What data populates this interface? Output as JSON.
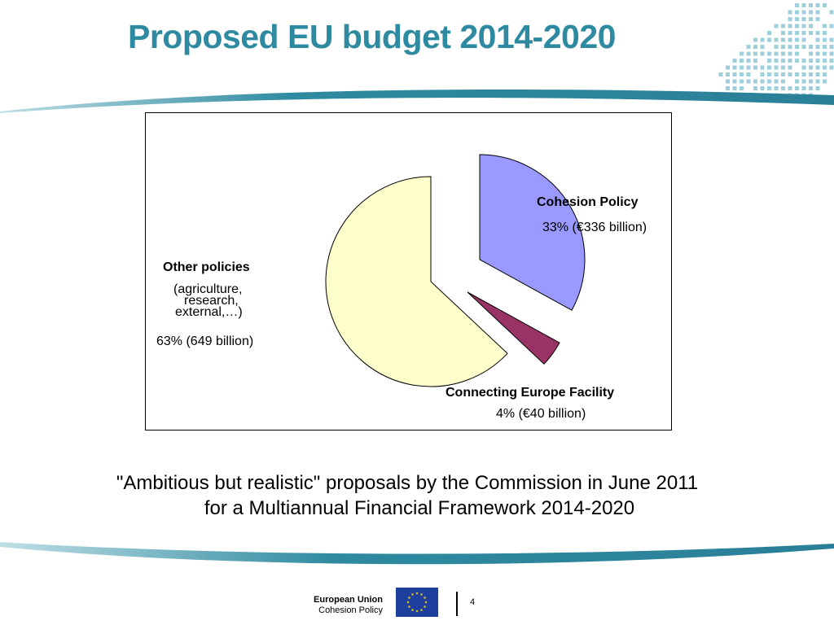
{
  "slide": {
    "title": "Proposed EU budget 2014-2020",
    "caption_line1": "\"Ambitious but realistic\" proposals by the Commission in June 2011",
    "caption_line2": "for a Multiannual Financial Framework 2014-2020",
    "page_number": "4"
  },
  "footer": {
    "org_name": "European Union",
    "org_sub": "Cohesion Policy",
    "flag_icon": "eu-flag-icon"
  },
  "colors": {
    "title": "#2e8aa0",
    "cohesion": "#9999ff",
    "connecting": "#993366",
    "other": "#ffffcc"
  },
  "chart_data": {
    "type": "pie",
    "title": "",
    "legend": "none",
    "slices": [
      {
        "name": "Cohesion Policy",
        "percent": 33,
        "label": "33% (€336 billion)",
        "color": "#9999ff",
        "exploded": true
      },
      {
        "name": "Connecting Europe Facility",
        "percent": 4,
        "label": "4% (€40 billion)",
        "color": "#993366",
        "exploded": true
      },
      {
        "name": "Other policies",
        "sub": [
          "(agriculture,",
          "research,",
          "external,…)"
        ],
        "percent": 63,
        "label": "63% (649 billion)",
        "color": "#ffffcc",
        "exploded": false
      }
    ]
  }
}
